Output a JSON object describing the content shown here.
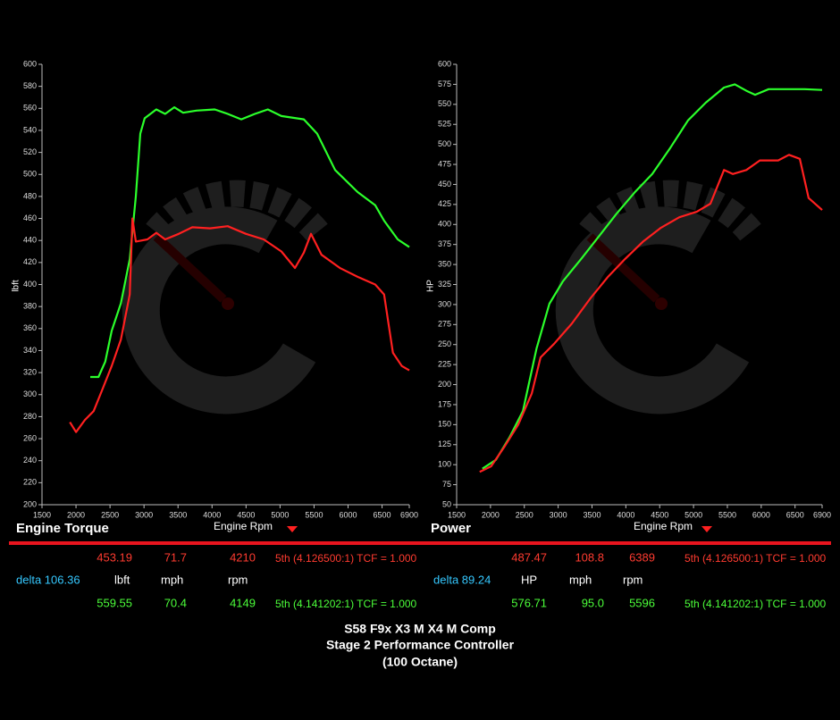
{
  "chart_data": [
    {
      "type": "line",
      "title": "Engine Torque",
      "x_label": "Engine Rpm",
      "y_label": "lbft",
      "xlim": [
        1500,
        6900
      ],
      "xticks": [
        1500,
        2000,
        2500,
        3000,
        3500,
        4000,
        4500,
        5000,
        5500,
        6000,
        6500,
        6900
      ],
      "ylim": [
        200,
        600
      ],
      "yticks": [
        200,
        220,
        240,
        260,
        280,
        300,
        320,
        340,
        360,
        380,
        400,
        420,
        440,
        460,
        480,
        500,
        520,
        540,
        560,
        580,
        600
      ],
      "series": [
        {
          "color": "#2bff2b",
          "x": [
            2210,
            2330,
            2430,
            2525,
            2660,
            2790,
            2880,
            2945,
            3010,
            3180,
            3310,
            3445,
            3575,
            3770,
            4040,
            4230,
            4430,
            4630,
            4820,
            5020,
            5350,
            5545,
            5810,
            6140,
            6400,
            6530,
            6730,
            6900
          ],
          "values": [
            316,
            316,
            330,
            358,
            383,
            423,
            480,
            537,
            551,
            559,
            555,
            561,
            556,
            558,
            559,
            555,
            550,
            555,
            559,
            553,
            550,
            537,
            504,
            484,
            472,
            458,
            441,
            434
          ]
        },
        {
          "color": "#ff2020",
          "x": [
            1910,
            2000,
            2130,
            2260,
            2390,
            2525,
            2660,
            2790,
            2830,
            2880,
            3050,
            3180,
            3310,
            3510,
            3710,
            3970,
            4230,
            4500,
            4760,
            5020,
            5220,
            5350,
            5455,
            5610,
            5880,
            6140,
            6400,
            6530,
            6660,
            6790,
            6900
          ],
          "values": [
            275,
            266,
            277,
            285,
            305,
            326,
            350,
            391,
            460,
            439,
            441,
            447,
            441,
            446,
            452,
            451,
            453,
            446,
            441,
            430,
            415,
            429,
            446,
            427,
            415,
            407,
            400,
            391,
            338,
            326,
            322
          ]
        }
      ]
    },
    {
      "type": "line",
      "title": "Power",
      "x_label": "Engine Rpm",
      "y_label": "HP",
      "xlim": [
        1500,
        6900
      ],
      "xticks": [
        1500,
        2000,
        2500,
        3000,
        3500,
        4000,
        4500,
        5000,
        5500,
        6000,
        6500,
        6900
      ],
      "ylim": [
        50,
        600
      ],
      "yticks": [
        50,
        75,
        100,
        125,
        150,
        175,
        200,
        225,
        250,
        275,
        300,
        325,
        350,
        375,
        400,
        425,
        450,
        475,
        500,
        525,
        550,
        575,
        600
      ],
      "series": [
        {
          "color": "#2bff2b",
          "x": [
            1880,
            2080,
            2280,
            2480,
            2680,
            2870,
            3070,
            3340,
            3600,
            3860,
            4130,
            4390,
            4660,
            4920,
            5180,
            5450,
            5610,
            5780,
            5910,
            6110,
            6370,
            6640,
            6900
          ],
          "values": [
            95,
            106,
            134,
            167,
            245,
            301,
            329,
            357,
            385,
            413,
            440,
            463,
            496,
            530,
            552,
            571,
            575,
            567,
            562,
            569,
            569,
            569,
            568
          ]
        },
        {
          "color": "#ff2020",
          "x": [
            1840,
            2010,
            2210,
            2410,
            2610,
            2740,
            2940,
            3200,
            3470,
            3730,
            3990,
            4260,
            4520,
            4790,
            5050,
            5250,
            5450,
            5580,
            5780,
            5980,
            6250,
            6410,
            6570,
            6700,
            6900
          ],
          "values": [
            91,
            98,
            123,
            150,
            189,
            234,
            251,
            276,
            307,
            334,
            357,
            379,
            396,
            409,
            416,
            426,
            468,
            463,
            468,
            480,
            480,
            487,
            482,
            433,
            418
          ]
        }
      ]
    }
  ],
  "readout": {
    "torque": {
      "rows": [
        [
          "453.19",
          "71.7",
          "4210",
          "5th (4.126500:1) TCF = 1.000"
        ],
        [
          "delta 106.36",
          "lbft",
          "mph",
          "rpm"
        ],
        [
          "559.55",
          "70.4",
          "4149",
          "5th (4.141202:1) TCF = 1.000"
        ]
      ]
    },
    "power": {
      "rows": [
        [
          "487.47",
          "108.8",
          "6389",
          "5th (4.126500:1) TCF = 1.000"
        ],
        [
          "delta 89.24",
          "HP",
          "mph",
          "rpm"
        ],
        [
          "576.71",
          "95.0",
          "5596",
          "5th (4.141202:1) TCF = 1.000"
        ]
      ]
    }
  },
  "footer": [
    "S58 F9x X3 M X4 M Comp",
    "Stage 2 Performance Controller",
    "(100 Octane)"
  ]
}
